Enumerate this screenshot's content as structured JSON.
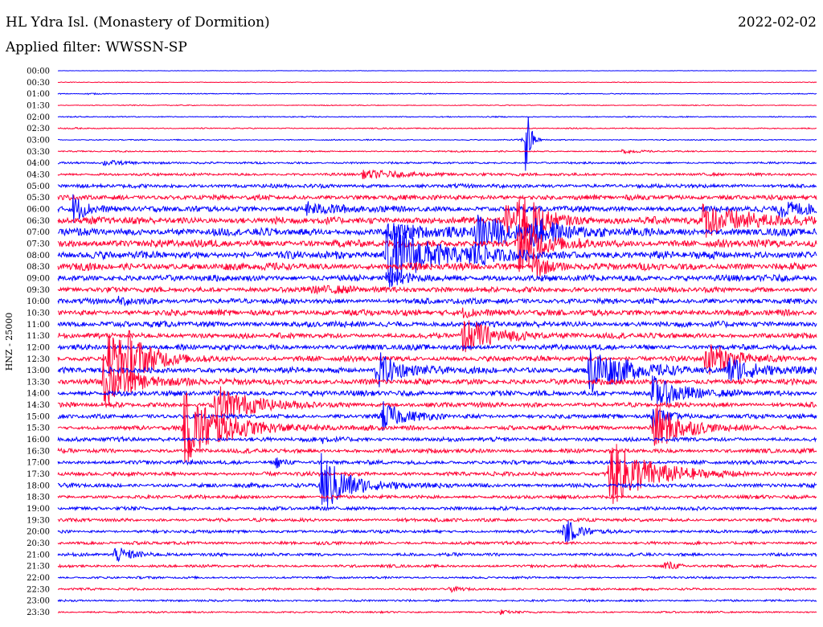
{
  "header": {
    "station": "HL Ydra Isl. (Monastery of Dormition)",
    "date": "2022-02-02",
    "filter": "Applied filter: WWSSN-SP"
  },
  "colors": {
    "trace_a": "#0000ff",
    "trace_b": "#ff0033",
    "background": "#ffffff"
  },
  "chart_data": {
    "type": "line",
    "title": "HL Ydra Isl. (Monastery of Dormition)",
    "ylabel": "HNZ - 25000",
    "xlabel": "",
    "row_labels": [
      "00:00",
      "00:30",
      "01:00",
      "01:30",
      "02:00",
      "02:30",
      "03:00",
      "03:30",
      "04:00",
      "04:30",
      "05:00",
      "05:30",
      "06:00",
      "06:30",
      "07:00",
      "07:30",
      "08:00",
      "08:30",
      "09:00",
      "09:30",
      "10:00",
      "10:30",
      "11:00",
      "11:30",
      "12:00",
      "12:30",
      "13:00",
      "13:30",
      "14:00",
      "14:30",
      "15:00",
      "15:30",
      "16:00",
      "16:30",
      "17:00",
      "17:30",
      "18:00",
      "18:30",
      "19:00",
      "19:30",
      "20:00",
      "20:30",
      "21:00",
      "21:30",
      "22:00",
      "22:30",
      "23:00",
      "23:30"
    ],
    "row_minutes": 30,
    "color_cycle": [
      "#0000ff",
      "#ff0033"
    ],
    "noise_by_row": [
      0.2,
      0.3,
      0.4,
      0.4,
      0.5,
      0.5,
      0.5,
      0.6,
      0.9,
      1.2,
      1.8,
      2.2,
      2.6,
      3.2,
      3.4,
      3.4,
      3.4,
      3.2,
      2.8,
      2.4,
      2.4,
      2.6,
      2.6,
      2.4,
      2.4,
      2.4,
      2.6,
      2.6,
      2.4,
      2.2,
      2.0,
      1.9,
      1.9,
      1.9,
      1.8,
      1.8,
      1.8,
      1.6,
      1.6,
      1.5,
      1.4,
      1.4,
      1.4,
      1.2,
      1.0,
      1.0,
      0.9,
      0.8
    ],
    "events": [
      {
        "row": 2,
        "minute": 1.2,
        "amplitude": 0.5,
        "width_minutes": 0.4
      },
      {
        "row": 5,
        "minute": 0.6,
        "amplitude": 0.6,
        "width_minutes": 0.3
      },
      {
        "row": 6,
        "minute": 18.5,
        "amplitude": 42.0,
        "width_minutes": 0.15
      },
      {
        "row": 7,
        "minute": 22.3,
        "amplitude": 1.5,
        "width_minutes": 0.6
      },
      {
        "row": 8,
        "minute": 1.8,
        "amplitude": 2.0,
        "width_minutes": 1.0
      },
      {
        "row": 9,
        "minute": 12.0,
        "amplitude": 3.0,
        "width_minutes": 2.0
      },
      {
        "row": 12,
        "minute": 0.6,
        "amplitude": 12.0,
        "width_minutes": 0.5
      },
      {
        "row": 12,
        "minute": 9.8,
        "amplitude": 5.0,
        "width_minutes": 1.0
      },
      {
        "row": 12,
        "minute": 28.5,
        "amplitude": 6.0,
        "width_minutes": 1.5
      },
      {
        "row": 13,
        "minute": 18.2,
        "amplitude": 24.0,
        "width_minutes": 0.8
      },
      {
        "row": 13,
        "minute": 17.7,
        "amplitude": 12.0,
        "width_minutes": 0.6
      },
      {
        "row": 13,
        "minute": 25.5,
        "amplitude": 12.0,
        "width_minutes": 2.0
      },
      {
        "row": 14,
        "minute": 16.5,
        "amplitude": 14.0,
        "width_minutes": 1.5
      },
      {
        "row": 14,
        "minute": 18.7,
        "amplitude": 10.0,
        "width_minutes": 1.0
      },
      {
        "row": 14,
        "minute": 13.0,
        "amplitude": 6.0,
        "width_minutes": 1.5
      },
      {
        "row": 15,
        "minute": 18.2,
        "amplitude": 24.0,
        "width_minutes": 0.8
      },
      {
        "row": 16,
        "minute": 13.0,
        "amplitude": 30.0,
        "width_minutes": 1.4
      },
      {
        "row": 16,
        "minute": 16.3,
        "amplitude": 8.0,
        "width_minutes": 0.8
      },
      {
        "row": 17,
        "minute": 18.8,
        "amplitude": 14.0,
        "width_minutes": 0.4
      },
      {
        "row": 18,
        "minute": 13.0,
        "amplitude": 4.0,
        "width_minutes": 1.0
      },
      {
        "row": 19,
        "minute": 10.0,
        "amplitude": 2.0,
        "width_minutes": 2.0
      },
      {
        "row": 20,
        "minute": 2.4,
        "amplitude": 3.0,
        "width_minutes": 0.8
      },
      {
        "row": 21,
        "minute": 16.0,
        "amplitude": 3.0,
        "width_minutes": 1.0
      },
      {
        "row": 23,
        "minute": 16.0,
        "amplitude": 14.0,
        "width_minutes": 1.2
      },
      {
        "row": 25,
        "minute": 2.0,
        "amplitude": 24.0,
        "width_minutes": 1.0
      },
      {
        "row": 25,
        "minute": 2.8,
        "amplitude": 12.0,
        "width_minutes": 0.8
      },
      {
        "row": 25,
        "minute": 25.6,
        "amplitude": 14.0,
        "width_minutes": 1.0
      },
      {
        "row": 26,
        "minute": 12.6,
        "amplitude": 16.0,
        "width_minutes": 0.8
      },
      {
        "row": 26,
        "minute": 21.0,
        "amplitude": 20.0,
        "width_minutes": 1.3
      },
      {
        "row": 26,
        "minute": 26.5,
        "amplitude": 12.0,
        "width_minutes": 1.0
      },
      {
        "row": 27,
        "minute": 1.8,
        "amplitude": 22.0,
        "width_minutes": 1.0
      },
      {
        "row": 28,
        "minute": 23.5,
        "amplitude": 14.0,
        "width_minutes": 1.0
      },
      {
        "row": 29,
        "minute": 6.2,
        "amplitude": 18.0,
        "width_minutes": 1.2
      },
      {
        "row": 30,
        "minute": 12.8,
        "amplitude": 12.0,
        "width_minutes": 0.8
      },
      {
        "row": 30,
        "minute": 23.5,
        "amplitude": 8.0,
        "width_minutes": 0.6
      },
      {
        "row": 31,
        "minute": 5.0,
        "amplitude": 30.0,
        "width_minutes": 1.5
      },
      {
        "row": 31,
        "minute": 23.5,
        "amplitude": 22.0,
        "width_minutes": 1.0
      },
      {
        "row": 32,
        "minute": 10.4,
        "amplitude": 3.0,
        "width_minutes": 0.4
      },
      {
        "row": 34,
        "minute": 8.6,
        "amplitude": 5.0,
        "width_minutes": 0.3
      },
      {
        "row": 35,
        "minute": 21.8,
        "amplitude": 28.0,
        "width_minutes": 1.5
      },
      {
        "row": 36,
        "minute": 10.4,
        "amplitude": 26.0,
        "width_minutes": 1.0
      },
      {
        "row": 40,
        "minute": 20.0,
        "amplitude": 10.0,
        "width_minutes": 0.6
      },
      {
        "row": 42,
        "minute": 2.2,
        "amplitude": 6.0,
        "width_minutes": 0.8
      },
      {
        "row": 43,
        "minute": 24.0,
        "amplitude": 5.0,
        "width_minutes": 0.4
      },
      {
        "row": 45,
        "minute": 15.5,
        "amplitude": 2.0,
        "width_minutes": 0.3
      },
      {
        "row": 47,
        "minute": 17.5,
        "amplitude": 2.0,
        "width_minutes": 0.3
      }
    ]
  }
}
